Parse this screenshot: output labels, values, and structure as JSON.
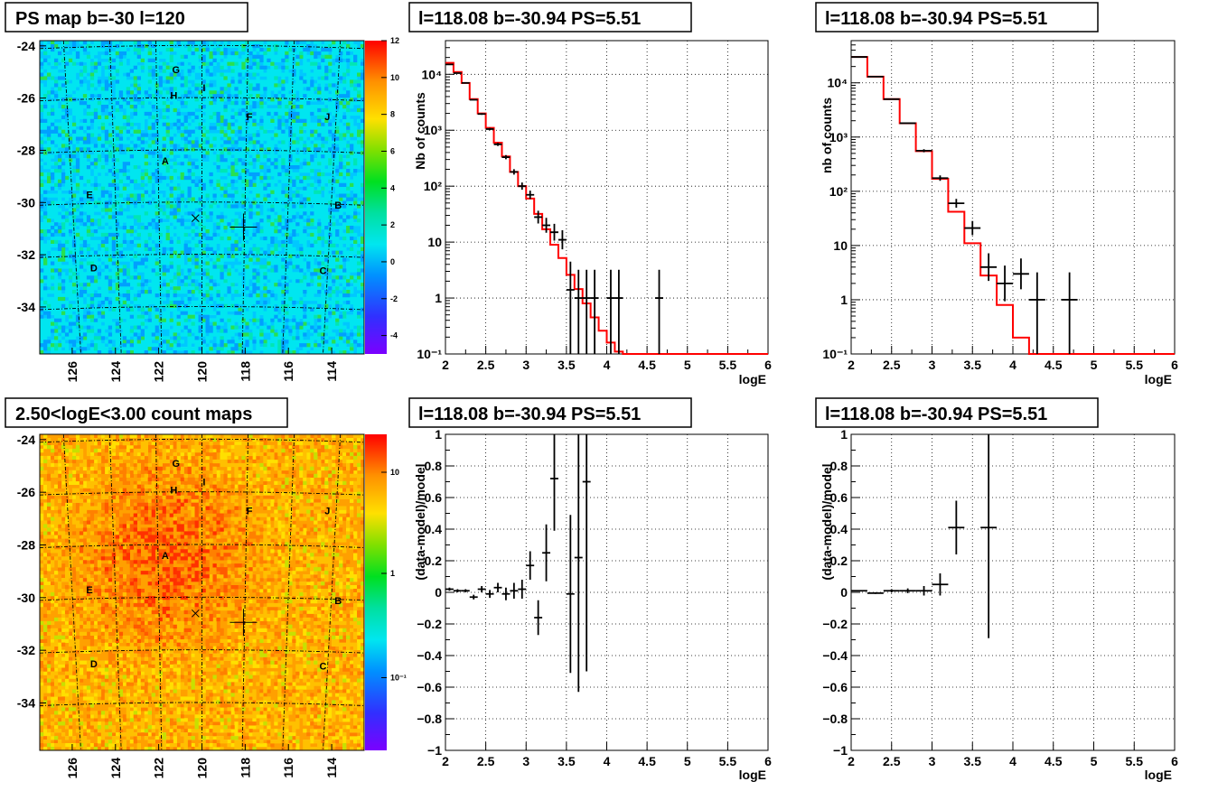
{
  "panels": {
    "ps_map": {
      "title": "PS map b=-30 l=120",
      "y_ticks": [
        "-24",
        "-26",
        "-28",
        "-30",
        "-32",
        "-34"
      ],
      "x_ticks": [
        "126",
        "124",
        "122",
        "120",
        "118",
        "116",
        "114"
      ],
      "colorbar_ticks": [
        "12",
        "10",
        "8",
        "6",
        "4",
        "2",
        "0",
        "-2",
        "-4"
      ],
      "source_labels": [
        "G",
        "H",
        "I",
        "F",
        "J",
        "A",
        "E",
        "B",
        "D",
        "C"
      ]
    },
    "count_map": {
      "title": "2.50<logE<3.00 count maps",
      "y_ticks": [
        "-24",
        "-26",
        "-28",
        "-30",
        "-32",
        "-34"
      ],
      "x_ticks": [
        "126",
        "124",
        "122",
        "120",
        "118",
        "116",
        "114"
      ],
      "colorbar_ticks": [
        "10",
        "1",
        "10⁻¹"
      ],
      "source_labels": [
        "G",
        "H",
        "I",
        "F",
        "J",
        "A",
        "E",
        "B",
        "D",
        "C"
      ]
    },
    "spec_left": {
      "title": "l=118.08 b=-30.94 PS=5.51",
      "ylabel": "Nb of counts",
      "xlabel": "logE"
    },
    "spec_right": {
      "title": "l=118.08 b=-30.94 PS=5.51",
      "ylabel": "nb of counts",
      "xlabel": "logE"
    },
    "resid_left": {
      "title": "l=118.08 b=-30.94 PS=5.51",
      "ylabel": "(data-model)/model",
      "xlabel": "logE"
    },
    "resid_right": {
      "title": "l=118.08 b=-30.94 PS=5.51",
      "ylabel": "(data-model)/model",
      "xlabel": "logE"
    }
  },
  "spectrum_axis": {
    "x_ticks": [
      "2",
      "2.5",
      "3",
      "3.5",
      "4",
      "4.5",
      "5",
      "5.5",
      "6"
    ],
    "y_log_ticks": [
      "10⁻¹",
      "1",
      "10",
      "10²",
      "10³",
      "10⁴"
    ]
  },
  "residual_axis": {
    "x_ticks": [
      "2",
      "2.5",
      "3",
      "3.5",
      "4",
      "4.5",
      "5",
      "5.5",
      "6"
    ],
    "y_ticks": [
      "1",
      "0.8",
      "0.6",
      "0.4",
      "0.2",
      "0",
      "−0.2",
      "−0.4",
      "−0.6",
      "−0.8",
      "−1"
    ]
  },
  "colors": {
    "model_line": "#ff0000",
    "data": "#000000",
    "grid": "#000000"
  },
  "chart_data": [
    {
      "type": "heatmap",
      "title": "PS map b=-30 l=120",
      "xlim": [
        127.5,
        112.5
      ],
      "ylim": [
        -35.8,
        -23.8
      ],
      "colorbar": {
        "min": -5,
        "max": 12,
        "scale": "linear"
      },
      "markers": [
        {
          "l": 120.3,
          "b": -30.6,
          "kind": "x"
        },
        {
          "l": 118.08,
          "b": -30.94,
          "kind": "cross"
        }
      ],
      "sources": [
        {
          "label": "G",
          "l": 121.2,
          "b": -24.9
        },
        {
          "label": "H",
          "l": 121.3,
          "b": -25.9
        },
        {
          "label": "I",
          "l": 119.9,
          "b": -25.6
        },
        {
          "label": "F",
          "l": 117.8,
          "b": -26.7
        },
        {
          "label": "J",
          "l": 114.2,
          "b": -26.7
        },
        {
          "label": "A",
          "l": 121.7,
          "b": -28.4
        },
        {
          "label": "E",
          "l": 125.2,
          "b": -29.7
        },
        {
          "label": "B",
          "l": 113.7,
          "b": -30.1
        },
        {
          "label": "D",
          "l": 125.0,
          "b": -32.5
        },
        {
          "label": "C",
          "l": 114.4,
          "b": -32.6
        }
      ]
    },
    {
      "type": "heatmap",
      "title": "2.50<logE<3.00 count maps",
      "xlim": [
        127.5,
        112.5
      ],
      "ylim": [
        -35.8,
        -23.8
      ],
      "colorbar": {
        "min": 0.03,
        "max": 30,
        "scale": "log"
      },
      "markers": [
        {
          "l": 120.3,
          "b": -30.6,
          "kind": "x"
        },
        {
          "l": 118.08,
          "b": -30.94,
          "kind": "cross"
        }
      ]
    },
    {
      "type": "line",
      "title": "l=118.08 b=-30.94 PS=5.51",
      "xlabel": "logE",
      "ylabel": "Nb of counts",
      "xlim": [
        2,
        6
      ],
      "ylim": [
        0.1,
        40000
      ],
      "yscale": "log",
      "model_steps": {
        "edges": [
          2.0,
          2.1,
          2.2,
          2.3,
          2.4,
          2.5,
          2.6,
          2.7,
          2.8,
          2.9,
          3.0,
          3.1,
          3.2,
          3.3,
          3.4,
          3.5,
          3.6,
          3.7,
          3.8,
          3.9,
          4.0,
          4.1,
          4.2,
          4.3,
          6.0
        ],
        "values": [
          16000,
          11000,
          7000,
          3600,
          2000,
          1100,
          600,
          340,
          180,
          100,
          60,
          32,
          17,
          9,
          5.2,
          2.6,
          1.45,
          0.8,
          0.45,
          0.26,
          0.16,
          0.11,
          0.1,
          0.1
        ]
      },
      "data_points": [
        {
          "x": 2.05,
          "y": 15000
        },
        {
          "x": 2.15,
          "y": 10500
        },
        {
          "x": 2.25,
          "y": 7000
        },
        {
          "x": 2.35,
          "y": 3500
        },
        {
          "x": 2.45,
          "y": 1950
        },
        {
          "x": 2.55,
          "y": 1050
        },
        {
          "x": 2.65,
          "y": 560
        },
        {
          "x": 2.75,
          "y": 330
        },
        {
          "x": 2.85,
          "y": 180
        },
        {
          "x": 2.95,
          "y": 100
        },
        {
          "x": 3.05,
          "y": 70
        },
        {
          "x": 3.15,
          "y": 28
        },
        {
          "x": 3.25,
          "y": 20
        },
        {
          "x": 3.35,
          "y": 15
        },
        {
          "x": 3.45,
          "y": 11
        },
        {
          "x": 3.55,
          "y": 1.4
        },
        {
          "x": 3.65,
          "y": 1
        },
        {
          "x": 3.75,
          "y": 1
        },
        {
          "x": 3.85,
          "y": 1
        },
        {
          "x": 4.05,
          "y": 1
        },
        {
          "x": 4.15,
          "y": 1
        },
        {
          "x": 4.65,
          "y": 1
        }
      ]
    },
    {
      "type": "line",
      "title": "l=118.08 b=-30.94 PS=5.51",
      "xlabel": "logE",
      "ylabel": "nb of counts",
      "xlim": [
        2,
        6
      ],
      "ylim": [
        0.1,
        60000
      ],
      "yscale": "log",
      "model_steps": {
        "edges": [
          2.0,
          2.2,
          2.4,
          2.6,
          2.8,
          3.0,
          3.2,
          3.4,
          3.6,
          3.8,
          4.0,
          4.2,
          6.0
        ],
        "values": [
          30000,
          13000,
          5000,
          1800,
          550,
          170,
          42,
          11,
          2.8,
          0.8,
          0.2,
          0.1
        ]
      },
      "data_points": [
        {
          "x": 2.1,
          "y": 30000
        },
        {
          "x": 2.3,
          "y": 13000
        },
        {
          "x": 2.5,
          "y": 5000
        },
        {
          "x": 2.7,
          "y": 1800
        },
        {
          "x": 2.9,
          "y": 560
        },
        {
          "x": 3.1,
          "y": 175
        },
        {
          "x": 3.3,
          "y": 60
        },
        {
          "x": 3.5,
          "y": 21
        },
        {
          "x": 3.7,
          "y": 4
        },
        {
          "x": 3.9,
          "y": 2
        },
        {
          "x": 4.1,
          "y": 3
        },
        {
          "x": 4.3,
          "y": 1
        },
        {
          "x": 4.7,
          "y": 1
        }
      ]
    },
    {
      "type": "scatter",
      "title": "l=118.08 b=-30.94 PS=5.51",
      "xlabel": "logE",
      "ylabel": "(data-model)/model",
      "xlim": [
        2,
        6
      ],
      "ylim": [
        -1,
        1
      ],
      "points": [
        {
          "x": 2.05,
          "y": 0.02,
          "err": 0.01
        },
        {
          "x": 2.15,
          "y": 0.01,
          "err": 0.01
        },
        {
          "x": 2.25,
          "y": 0.01,
          "err": 0.01
        },
        {
          "x": 2.35,
          "y": -0.03,
          "err": 0.015
        },
        {
          "x": 2.45,
          "y": 0.02,
          "err": 0.02
        },
        {
          "x": 2.55,
          "y": -0.01,
          "err": 0.025
        },
        {
          "x": 2.65,
          "y": 0.03,
          "err": 0.03
        },
        {
          "x": 2.75,
          "y": -0.01,
          "err": 0.04
        },
        {
          "x": 2.85,
          "y": 0.01,
          "err": 0.05
        },
        {
          "x": 2.95,
          "y": 0.02,
          "err": 0.06
        },
        {
          "x": 3.05,
          "y": 0.17,
          "err": 0.09
        },
        {
          "x": 3.15,
          "y": -0.16,
          "err": 0.11
        },
        {
          "x": 3.25,
          "y": 0.25,
          "err": 0.18
        },
        {
          "x": 3.35,
          "y": 0.72,
          "err": 0.33
        },
        {
          "x": 3.55,
          "y": -0.01,
          "err": 0.5
        },
        {
          "x": 3.65,
          "y": 0.22,
          "err": 0.85
        },
        {
          "x": 3.75,
          "y": 0.7,
          "err": 1.2
        }
      ]
    },
    {
      "type": "scatter",
      "title": "l=118.08 b=-30.94 PS=5.51",
      "xlabel": "logE",
      "ylabel": "(data-model)/model",
      "xlim": [
        2,
        6
      ],
      "ylim": [
        -1,
        1
      ],
      "points": [
        {
          "x": 2.1,
          "y": 0.01,
          "err": 0.005
        },
        {
          "x": 2.3,
          "y": -0.005,
          "err": 0.006
        },
        {
          "x": 2.5,
          "y": 0.01,
          "err": 0.01
        },
        {
          "x": 2.7,
          "y": 0.01,
          "err": 0.015
        },
        {
          "x": 2.9,
          "y": 0.01,
          "err": 0.03
        },
        {
          "x": 3.1,
          "y": 0.05,
          "err": 0.07
        },
        {
          "x": 3.3,
          "y": 0.41,
          "err": 0.17
        },
        {
          "x": 3.7,
          "y": 0.41,
          "err": 0.7
        }
      ]
    }
  ]
}
